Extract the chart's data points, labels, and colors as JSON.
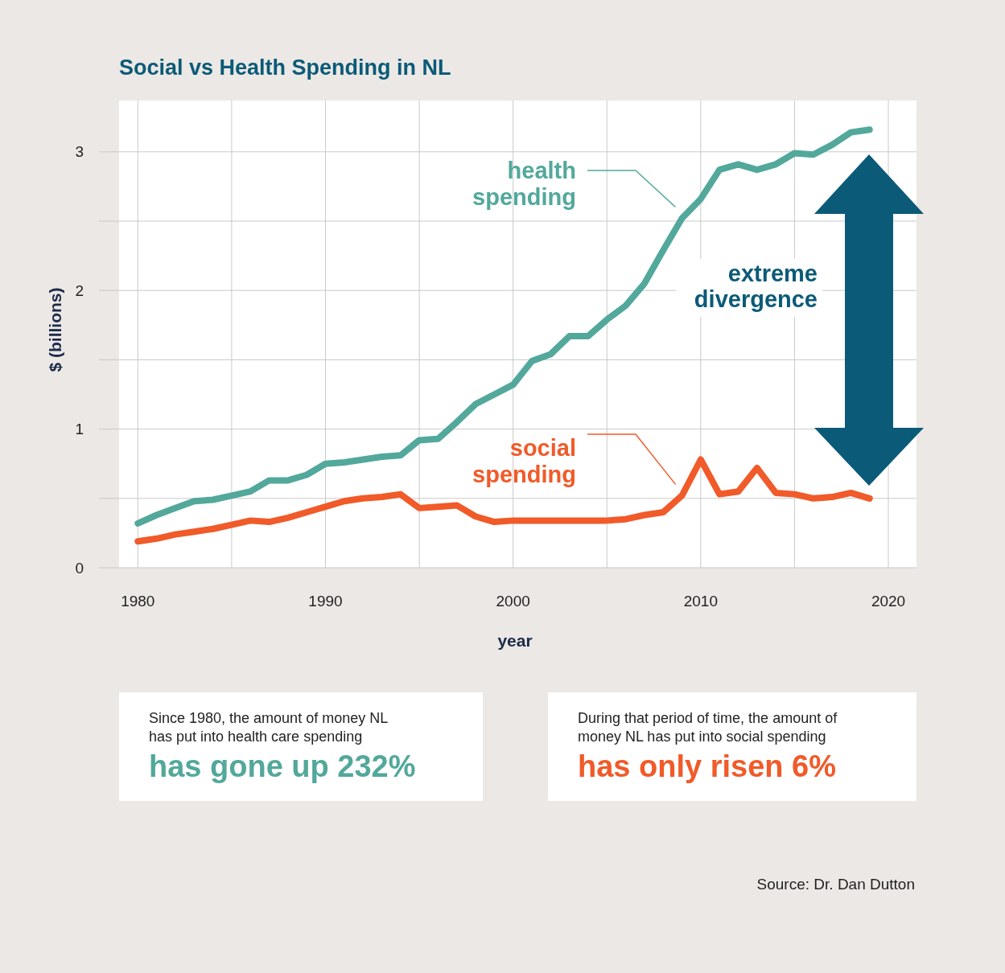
{
  "chart_data": {
    "type": "line",
    "title": "Social vs Health Spending in NL",
    "xlabel": "year",
    "ylabel": "$ (billions)",
    "x": [
      1980,
      1981,
      1982,
      1983,
      1984,
      1985,
      1986,
      1987,
      1988,
      1989,
      1990,
      1991,
      1992,
      1993,
      1994,
      1995,
      1996,
      1997,
      1998,
      1999,
      2000,
      2001,
      2002,
      2003,
      2004,
      2005,
      2006,
      2007,
      2008,
      2009,
      2010,
      2011,
      2012,
      2013,
      2014,
      2015,
      2016,
      2017,
      2018,
      2019
    ],
    "series": [
      {
        "name": "health spending",
        "color": "#52a89b",
        "values": [
          0.32,
          0.38,
          0.43,
          0.48,
          0.49,
          0.52,
          0.55,
          0.63,
          0.63,
          0.67,
          0.75,
          0.76,
          0.78,
          0.8,
          0.81,
          0.92,
          0.93,
          1.05,
          1.18,
          1.25,
          1.32,
          1.49,
          1.54,
          1.67,
          1.67,
          1.79,
          1.89,
          2.05,
          2.29,
          2.52,
          2.66,
          2.87,
          2.91,
          2.87,
          2.91,
          2.99,
          2.98,
          3.05,
          3.14,
          3.16
        ]
      },
      {
        "name": "social spending",
        "color": "#f15a29",
        "values": [
          0.19,
          0.21,
          0.24,
          0.26,
          0.28,
          0.31,
          0.34,
          0.33,
          0.36,
          0.4,
          0.44,
          0.48,
          0.5,
          0.51,
          0.53,
          0.43,
          0.44,
          0.45,
          0.37,
          0.33,
          0.34,
          0.34,
          0.34,
          0.34,
          0.34,
          0.34,
          0.35,
          0.38,
          0.4,
          0.52,
          0.78,
          0.53,
          0.55,
          0.72,
          0.54,
          0.53,
          0.5,
          0.51,
          0.54,
          0.5
        ]
      }
    ],
    "xlim": [
      1979,
      2021.5
    ],
    "ylim": [
      0,
      3.37
    ],
    "xticks": [
      1980,
      {
        "value": 1985,
        "label": null
      },
      1990,
      {
        "value": 1995,
        "label": null
      },
      2000,
      {
        "value": 2005,
        "label": null
      },
      2010,
      {
        "value": 2015,
        "label": null
      },
      2020
    ],
    "yticks": [
      0,
      {
        "value": 0.5,
        "label": null
      },
      1,
      {
        "value": 1.5,
        "label": null
      },
      2,
      {
        "value": 2.5,
        "label": null
      },
      3
    ],
    "grid": true,
    "legend": "center",
    "marker": "none",
    "line_style": "solid",
    "annotations": [
      "extreme divergence",
      "Since 1980, the amount of money NL has put into health care spending",
      "has gone up 232%",
      "During that period of time, the amount of money NL has put into social spending",
      "has only risen 6%",
      "Source: Dr. Dan Dutton"
    ]
  }
}
